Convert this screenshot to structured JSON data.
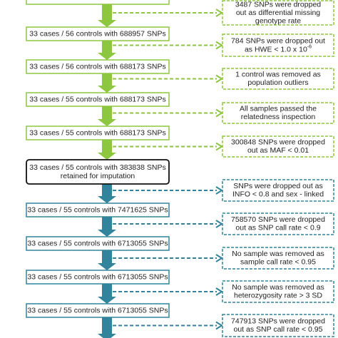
{
  "steps": [
    {
      "lines": [
        "33 cases / 56 controls with 688957 SNPs"
      ]
    },
    {
      "lines": [
        "33 cases / 56 controls with 688173 SNPs"
      ]
    },
    {
      "lines": [
        "33 cases / 55 controls with 688173 SNPs"
      ]
    },
    {
      "lines": [
        "33 cases / 55 controls with 688173 SNPs"
      ]
    },
    {
      "lines": [
        "33 cases / 55 controls with 383838 SNPs",
        "retained for imputation"
      ]
    },
    {
      "lines": [
        "33 cases / 55 controls with 7471625 SNPs"
      ]
    },
    {
      "lines": [
        "33 cases / 55 controls with 6713055 SNPs"
      ]
    },
    {
      "lines": [
        "33 cases / 55 controls with 6713055 SNPs"
      ]
    },
    {
      "lines": [
        "33 cases / 55 controls with 6713055 SNPs"
      ]
    }
  ],
  "filters": [
    {
      "lines": [
        "3487 SNPs were dropped",
        "out as differential missing",
        "genotype rate"
      ]
    },
    {
      "lines": [
        "784 SNPs were dropped out",
        "as HWE < 1.0 x 10"
      ],
      "sup": "-6"
    },
    {
      "lines": [
        "1 control was removed as",
        "population outliers"
      ]
    },
    {
      "lines": [
        "All samples passed the",
        "relatedness inspection"
      ]
    },
    {
      "lines": [
        "300848 SNPs were dropped",
        "out as MAF < 0.01"
      ]
    },
    {
      "lines": [
        "SNPs were dropped out as",
        "INFO < 0.8 and sex - linked"
      ]
    },
    {
      "lines": [
        "758570 SNPs were dropped",
        "out as SNP call rate < 0.9"
      ]
    },
    {
      "lines": [
        "No sample was removed as",
        "sample call rate < 0.95"
      ]
    },
    {
      "lines": [
        "No sample was removed as",
        "heterozygosity rate > 3 SD"
      ]
    },
    {
      "lines": [
        "747913 SNPs were dropped",
        "out as SNP call rate < 0.95"
      ]
    }
  ]
}
